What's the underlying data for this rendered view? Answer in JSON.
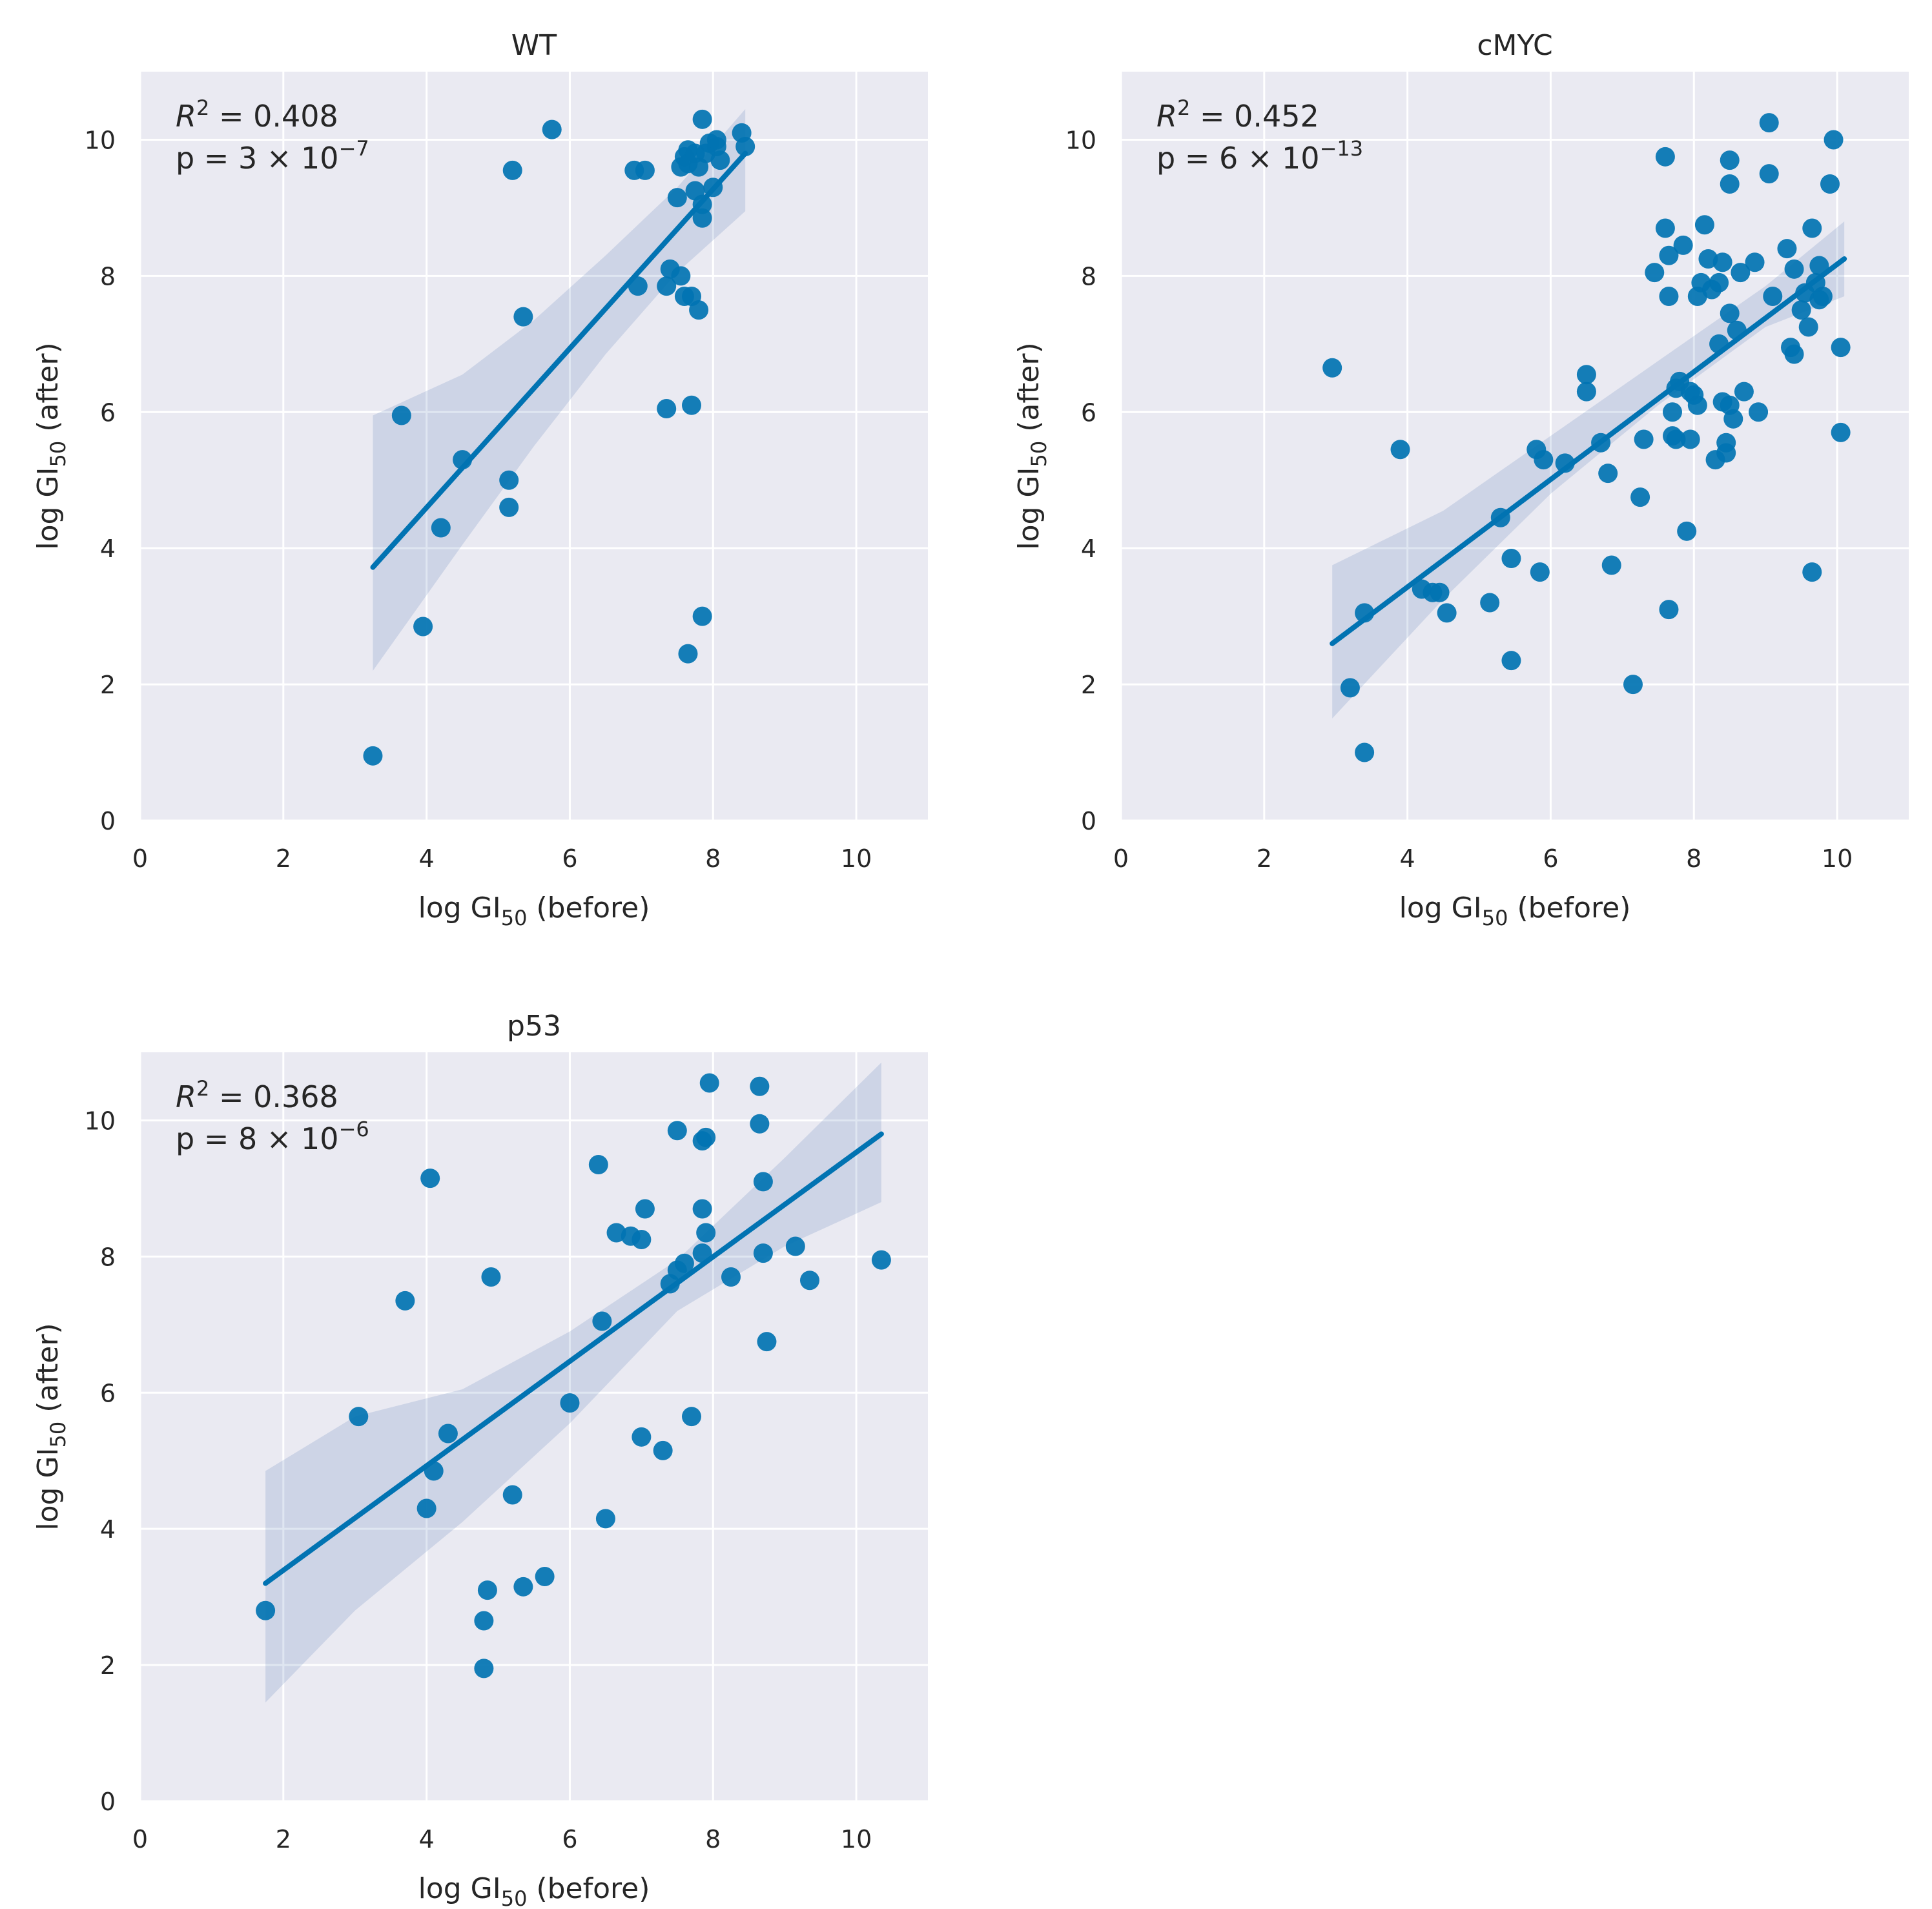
{
  "chart_data": [
    {
      "type": "scatter",
      "title": "WT",
      "xlabel": "log GI",
      "xlabel_sub": "50",
      "xlabel_suffix": " (before)",
      "ylabel": "log GI",
      "ylabel_sub": "50",
      "ylabel_suffix": " (after)",
      "xlim": [
        0,
        11
      ],
      "ylim": [
        0,
        11
      ],
      "xticks": [
        0,
        2,
        4,
        6,
        8,
        10
      ],
      "yticks": [
        0,
        2,
        4,
        6,
        8,
        10
      ],
      "r2_label": "R",
      "r2_value": " = 0.408",
      "p_prefix": "p = 3 × 10",
      "p_exponent": "−7",
      "fit": {
        "x": [
          3.25,
          8.45
        ],
        "y": [
          3.72,
          9.8
        ]
      },
      "ci": {
        "x": [
          3.25,
          4.5,
          5.5,
          6.5,
          7.5,
          8.45
        ],
        "upper": [
          5.95,
          6.55,
          7.35,
          8.3,
          9.3,
          10.45
        ],
        "lower": [
          2.2,
          4.05,
          5.5,
          6.85,
          8.05,
          8.95
        ]
      },
      "points": [
        [
          3.25,
          0.95
        ],
        [
          3.65,
          5.95
        ],
        [
          3.95,
          2.85
        ],
        [
          4.2,
          4.3
        ],
        [
          4.5,
          5.3
        ],
        [
          5.15,
          4.6
        ],
        [
          5.15,
          5.0
        ],
        [
          5.2,
          9.55
        ],
        [
          5.35,
          7.4
        ],
        [
          5.75,
          10.15
        ],
        [
          6.9,
          9.55
        ],
        [
          6.95,
          7.85
        ],
        [
          7.05,
          9.55
        ],
        [
          7.35,
          7.85
        ],
        [
          7.4,
          8.1
        ],
        [
          7.5,
          9.15
        ],
        [
          7.55,
          9.6
        ],
        [
          7.55,
          8.0
        ],
        [
          7.6,
          7.7
        ],
        [
          7.6,
          9.75
        ],
        [
          7.65,
          9.85
        ],
        [
          7.65,
          9.65
        ],
        [
          7.7,
          6.1
        ],
        [
          7.7,
          7.7
        ],
        [
          7.75,
          9.25
        ],
        [
          7.75,
          9.8
        ],
        [
          7.8,
          7.5
        ],
        [
          7.8,
          9.6
        ],
        [
          7.85,
          9.05
        ],
        [
          7.85,
          8.85
        ],
        [
          7.85,
          3.0
        ],
        [
          7.85,
          10.3
        ],
        [
          7.9,
          9.8
        ],
        [
          7.95,
          9.95
        ],
        [
          8.0,
          9.3
        ],
        [
          8.05,
          9.9
        ],
        [
          8.05,
          10.0
        ],
        [
          8.1,
          9.7
        ],
        [
          7.35,
          6.05
        ],
        [
          7.65,
          2.45
        ],
        [
          8.4,
          10.1
        ],
        [
          8.45,
          9.9
        ]
      ]
    },
    {
      "type": "scatter",
      "title": "cMYC",
      "xlabel": "log GI",
      "xlabel_sub": "50",
      "xlabel_suffix": " (before)",
      "ylabel": "log GI",
      "ylabel_sub": "50",
      "ylabel_suffix": " (after)",
      "xlim": [
        0,
        11
      ],
      "ylim": [
        0,
        11
      ],
      "xticks": [
        0,
        2,
        4,
        6,
        8,
        10
      ],
      "yticks": [
        0,
        2,
        4,
        6,
        8,
        10
      ],
      "r2_label": "R",
      "r2_value": " = 0.452",
      "p_prefix": "p = 6 × 10",
      "p_exponent": "−13",
      "fit": {
        "x": [
          2.95,
          10.1
        ],
        "y": [
          2.6,
          8.25
        ]
      },
      "ci": {
        "x": [
          2.95,
          4.5,
          6.0,
          7.5,
          9.0,
          10.1
        ],
        "upper": [
          3.75,
          4.55,
          5.65,
          6.75,
          7.85,
          8.8
        ],
        "lower": [
          1.5,
          3.25,
          4.8,
          6.1,
          7.25,
          7.7
        ]
      },
      "points": [
        [
          2.95,
          6.65
        ],
        [
          3.2,
          1.95
        ],
        [
          3.4,
          3.05
        ],
        [
          3.4,
          1.0
        ],
        [
          3.9,
          5.45
        ],
        [
          4.2,
          3.4
        ],
        [
          4.35,
          3.35
        ],
        [
          4.45,
          3.35
        ],
        [
          4.55,
          3.05
        ],
        [
          5.15,
          3.2
        ],
        [
          5.3,
          4.45
        ],
        [
          5.45,
          3.85
        ],
        [
          5.45,
          2.35
        ],
        [
          5.8,
          5.45
        ],
        [
          5.85,
          3.65
        ],
        [
          5.9,
          5.3
        ],
        [
          6.2,
          5.25
        ],
        [
          6.5,
          6.55
        ],
        [
          6.5,
          6.3
        ],
        [
          6.7,
          5.55
        ],
        [
          6.8,
          5.1
        ],
        [
          6.85,
          3.75
        ],
        [
          7.15,
          2.0
        ],
        [
          7.25,
          4.75
        ],
        [
          7.3,
          5.6
        ],
        [
          7.45,
          8.05
        ],
        [
          7.6,
          9.75
        ],
        [
          7.6,
          8.7
        ],
        [
          7.65,
          8.3
        ],
        [
          7.65,
          7.7
        ],
        [
          7.65,
          3.1
        ],
        [
          7.7,
          6.0
        ],
        [
          7.7,
          5.65
        ],
        [
          7.75,
          5.6
        ],
        [
          7.75,
          6.35
        ],
        [
          7.8,
          6.45
        ],
        [
          7.85,
          8.45
        ],
        [
          7.9,
          4.25
        ],
        [
          7.95,
          6.3
        ],
        [
          7.95,
          5.6
        ],
        [
          8.0,
          6.25
        ],
        [
          8.05,
          6.1
        ],
        [
          8.05,
          7.7
        ],
        [
          8.1,
          7.9
        ],
        [
          8.15,
          8.75
        ],
        [
          8.2,
          8.25
        ],
        [
          8.25,
          7.8
        ],
        [
          8.3,
          5.3
        ],
        [
          8.35,
          7.9
        ],
        [
          8.35,
          7.0
        ],
        [
          8.4,
          6.15
        ],
        [
          8.4,
          8.2
        ],
        [
          8.45,
          5.4
        ],
        [
          8.45,
          5.55
        ],
        [
          8.5,
          9.7
        ],
        [
          8.5,
          9.35
        ],
        [
          8.5,
          7.45
        ],
        [
          8.5,
          6.1
        ],
        [
          8.55,
          5.9
        ],
        [
          8.6,
          7.2
        ],
        [
          8.65,
          8.05
        ],
        [
          8.7,
          6.3
        ],
        [
          8.85,
          8.2
        ],
        [
          8.9,
          6.0
        ],
        [
          9.05,
          10.25
        ],
        [
          9.05,
          9.5
        ],
        [
          9.1,
          7.7
        ],
        [
          9.3,
          8.4
        ],
        [
          9.35,
          6.95
        ],
        [
          9.4,
          8.1
        ],
        [
          9.4,
          6.85
        ],
        [
          9.5,
          7.5
        ],
        [
          9.55,
          7.75
        ],
        [
          9.6,
          7.25
        ],
        [
          9.65,
          8.7
        ],
        [
          9.65,
          3.65
        ],
        [
          9.7,
          7.9
        ],
        [
          9.75,
          8.15
        ],
        [
          9.75,
          7.65
        ],
        [
          9.8,
          7.7
        ],
        [
          9.9,
          9.35
        ],
        [
          9.95,
          10.0
        ],
        [
          10.05,
          6.95
        ],
        [
          10.05,
          5.7
        ]
      ]
    },
    {
      "type": "scatter",
      "title": "p53",
      "xlabel": "log GI",
      "xlabel_sub": "50",
      "xlabel_suffix": " (before)",
      "ylabel": "log GI",
      "ylabel_sub": "50",
      "ylabel_suffix": " (after)",
      "xlim": [
        0,
        11
      ],
      "ylim": [
        0,
        11
      ],
      "xticks": [
        0,
        2,
        4,
        6,
        8,
        10
      ],
      "yticks": [
        0,
        2,
        4,
        6,
        8,
        10
      ],
      "r2_label": "R",
      "r2_value": " = 0.368",
      "p_prefix": "p = 8 × 10",
      "p_exponent": "−6",
      "fit": {
        "x": [
          1.75,
          10.35
        ],
        "y": [
          3.2,
          9.8
        ]
      },
      "ci": {
        "x": [
          1.75,
          3.0,
          4.5,
          6.0,
          7.5,
          9.0,
          10.35
        ],
        "upper": [
          4.85,
          5.65,
          6.05,
          6.9,
          7.95,
          9.45,
          10.85
        ],
        "lower": [
          1.45,
          2.8,
          4.1,
          5.55,
          7.2,
          8.15,
          8.8
        ]
      },
      "points": [
        [
          1.75,
          2.8
        ],
        [
          3.05,
          5.65
        ],
        [
          3.7,
          7.35
        ],
        [
          4.0,
          4.3
        ],
        [
          4.05,
          9.15
        ],
        [
          4.1,
          4.85
        ],
        [
          4.3,
          5.4
        ],
        [
          4.8,
          2.65
        ],
        [
          4.8,
          1.95
        ],
        [
          4.85,
          3.1
        ],
        [
          4.9,
          7.7
        ],
        [
          5.2,
          4.5
        ],
        [
          5.35,
          3.15
        ],
        [
          5.65,
          3.3
        ],
        [
          6.0,
          5.85
        ],
        [
          6.4,
          9.35
        ],
        [
          6.45,
          7.05
        ],
        [
          6.5,
          4.15
        ],
        [
          6.65,
          8.35
        ],
        [
          6.85,
          8.3
        ],
        [
          7.0,
          8.25
        ],
        [
          7.0,
          5.35
        ],
        [
          7.05,
          8.7
        ],
        [
          7.3,
          5.15
        ],
        [
          7.4,
          7.6
        ],
        [
          7.5,
          9.85
        ],
        [
          7.5,
          7.8
        ],
        [
          7.6,
          7.9
        ],
        [
          7.7,
          5.65
        ],
        [
          7.85,
          9.7
        ],
        [
          7.85,
          8.7
        ],
        [
          7.85,
          8.05
        ],
        [
          7.9,
          8.35
        ],
        [
          7.9,
          9.75
        ],
        [
          7.95,
          10.55
        ],
        [
          8.25,
          7.7
        ],
        [
          8.65,
          10.5
        ],
        [
          8.65,
          9.95
        ],
        [
          8.7,
          8.05
        ],
        [
          8.7,
          9.1
        ],
        [
          8.75,
          6.75
        ],
        [
          9.15,
          8.15
        ],
        [
          9.35,
          7.65
        ],
        [
          10.35,
          7.95
        ]
      ]
    }
  ]
}
